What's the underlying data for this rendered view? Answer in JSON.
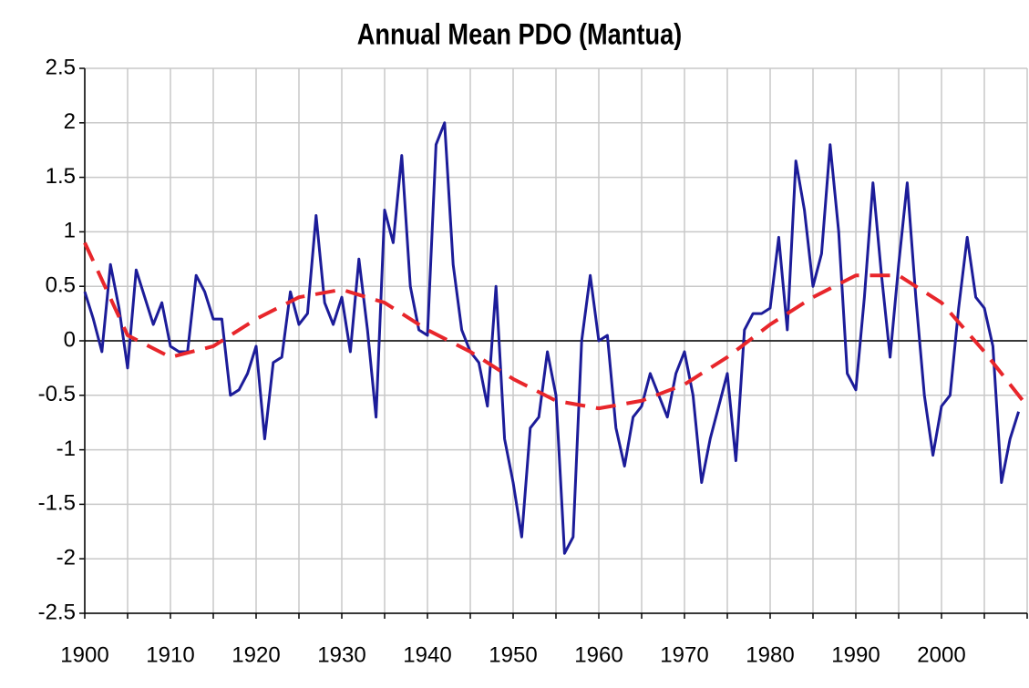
{
  "chart_data": {
    "type": "line",
    "title": "Annual Mean PDO (Mantua)",
    "xlim": [
      1900,
      2010
    ],
    "xticks": [
      1900,
      1910,
      1920,
      1930,
      1940,
      1950,
      1960,
      1970,
      1980,
      1990,
      2000
    ],
    "xgrid": [
      1905,
      1915,
      1925,
      1935,
      1945,
      1955,
      1965,
      1975,
      1985,
      1995,
      2005,
      2010
    ],
    "ylim": [
      -2.5,
      2.5
    ],
    "yticks": [
      -2.5,
      -2,
      -1.5,
      -1,
      -0.5,
      0,
      0.5,
      1,
      1.5,
      2,
      2.5
    ],
    "grid": true,
    "series": [
      {
        "color": "#1c1c99",
        "dashed": false,
        "x": [
          1900,
          1901,
          1902,
          1903,
          1904,
          1905,
          1906,
          1907,
          1908,
          1909,
          1910,
          1911,
          1912,
          1913,
          1914,
          1915,
          1916,
          1917,
          1918,
          1919,
          1920,
          1921,
          1922,
          1923,
          1924,
          1925,
          1926,
          1927,
          1928,
          1929,
          1930,
          1931,
          1932,
          1933,
          1934,
          1935,
          1936,
          1937,
          1938,
          1939,
          1940,
          1941,
          1942,
          1943,
          1944,
          1945,
          1946,
          1947,
          1948,
          1949,
          1950,
          1951,
          1952,
          1953,
          1954,
          1955,
          1956,
          1957,
          1958,
          1959,
          1960,
          1961,
          1962,
          1963,
          1964,
          1965,
          1966,
          1967,
          1968,
          1969,
          1970,
          1971,
          1972,
          1973,
          1974,
          1975,
          1976,
          1977,
          1978,
          1979,
          1980,
          1981,
          1982,
          1983,
          1984,
          1985,
          1986,
          1987,
          1988,
          1989,
          1990,
          1991,
          1992,
          1993,
          1994,
          1995,
          1996,
          1997,
          1998,
          1999,
          2000,
          2001,
          2002,
          2003,
          2004,
          2005,
          2006,
          2007,
          2008,
          2009
        ],
        "values": [
          0.45,
          0.2,
          -0.1,
          0.7,
          0.3,
          -0.25,
          0.65,
          0.4,
          0.15,
          0.35,
          -0.05,
          -0.1,
          -0.1,
          0.6,
          0.45,
          0.2,
          0.2,
          -0.5,
          -0.45,
          -0.3,
          -0.05,
          -0.9,
          -0.2,
          -0.15,
          0.45,
          0.15,
          0.25,
          1.15,
          0.35,
          0.15,
          0.4,
          -0.1,
          0.75,
          0.1,
          -0.7,
          1.2,
          0.9,
          1.7,
          0.5,
          0.1,
          0.05,
          1.8,
          2.0,
          0.7,
          0.1,
          -0.1,
          -0.2,
          -0.6,
          0.5,
          -0.9,
          -1.3,
          -1.8,
          -0.8,
          -0.7,
          -0.1,
          -0.5,
          -1.95,
          -1.8,
          0.0,
          0.6,
          0.0,
          0.05,
          -0.8,
          -1.15,
          -0.7,
          -0.6,
          -0.3,
          -0.5,
          -0.7,
          -0.3,
          -0.1,
          -0.5,
          -1.3,
          -0.9,
          -0.6,
          -0.3,
          -1.1,
          0.1,
          0.25,
          0.25,
          0.3,
          0.95,
          0.1,
          1.65,
          1.2,
          0.5,
          0.8,
          1.8,
          1.0,
          -0.3,
          -0.45,
          0.4,
          1.45,
          0.6,
          -0.15,
          0.7,
          1.45,
          0.4,
          -0.5,
          -1.05,
          -0.6,
          -0.5,
          0.3,
          0.95,
          0.4,
          0.3,
          -0.05,
          -1.3,
          -0.9,
          -0.65
        ]
      },
      {
        "color": "#e8262b",
        "dashed": true,
        "x": [
          1900,
          1905,
          1910,
          1915,
          1920,
          1925,
          1930,
          1935,
          1940,
          1945,
          1950,
          1955,
          1960,
          1965,
          1970,
          1975,
          1980,
          1985,
          1990,
          1995,
          2000,
          2005,
          2010
        ],
        "values": [
          0.9,
          0.05,
          -0.15,
          -0.05,
          0.2,
          0.4,
          0.47,
          0.35,
          0.1,
          -0.1,
          -0.35,
          -0.55,
          -0.62,
          -0.55,
          -0.4,
          -0.15,
          0.15,
          0.4,
          0.6,
          0.6,
          0.35,
          -0.1,
          -0.6
        ]
      }
    ]
  }
}
